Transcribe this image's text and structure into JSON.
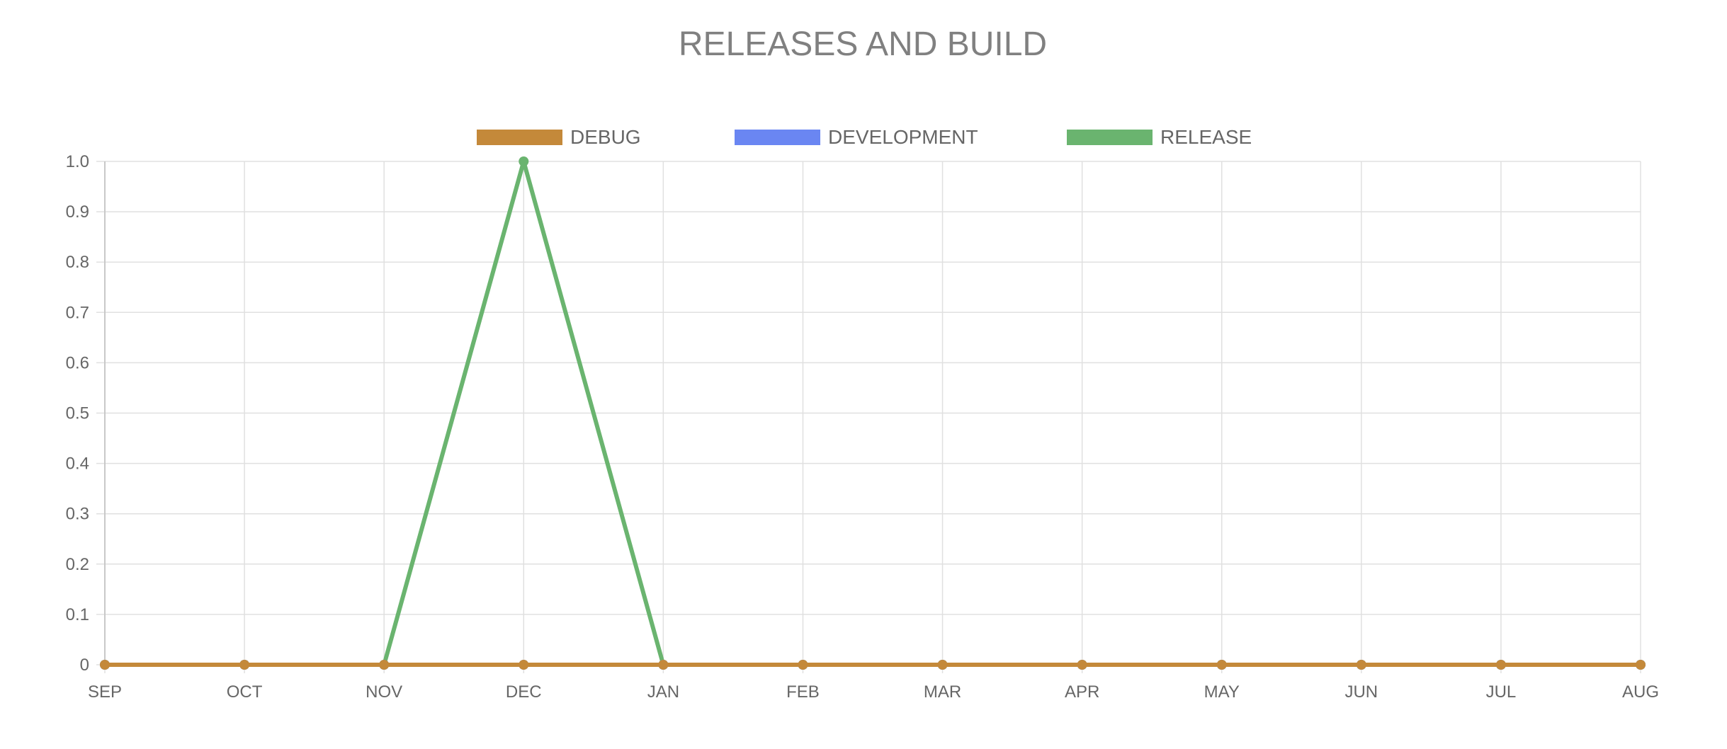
{
  "chart_data": {
    "type": "line",
    "title": "RELEASES AND BUILD",
    "categories": [
      "SEP",
      "OCT",
      "NOV",
      "DEC",
      "JAN",
      "FEB",
      "MAR",
      "APR",
      "MAY",
      "JUN",
      "JUL",
      "AUG"
    ],
    "ylim": [
      0,
      1
    ],
    "yticks": [
      "0",
      "0.1",
      "0.2",
      "0.3",
      "0.4",
      "0.5",
      "0.6",
      "0.7",
      "0.8",
      "0.9",
      "1.0"
    ],
    "grid": true,
    "legend_position": "top-center",
    "series": [
      {
        "name": "DEBUG",
        "color": "#c4893a",
        "values": [
          0,
          0,
          0,
          0,
          0,
          0,
          0,
          0,
          0,
          0,
          0,
          0
        ]
      },
      {
        "name": "DEVELOPMENT",
        "color": "#6a86f2",
        "values": [
          0,
          0,
          0,
          0,
          0,
          0,
          0,
          0,
          0,
          0,
          0,
          0
        ]
      },
      {
        "name": "RELEASE",
        "color": "#6ab46f",
        "values": [
          0,
          0,
          0,
          1,
          0,
          0,
          0,
          0,
          0,
          0,
          0,
          0
        ]
      }
    ]
  }
}
